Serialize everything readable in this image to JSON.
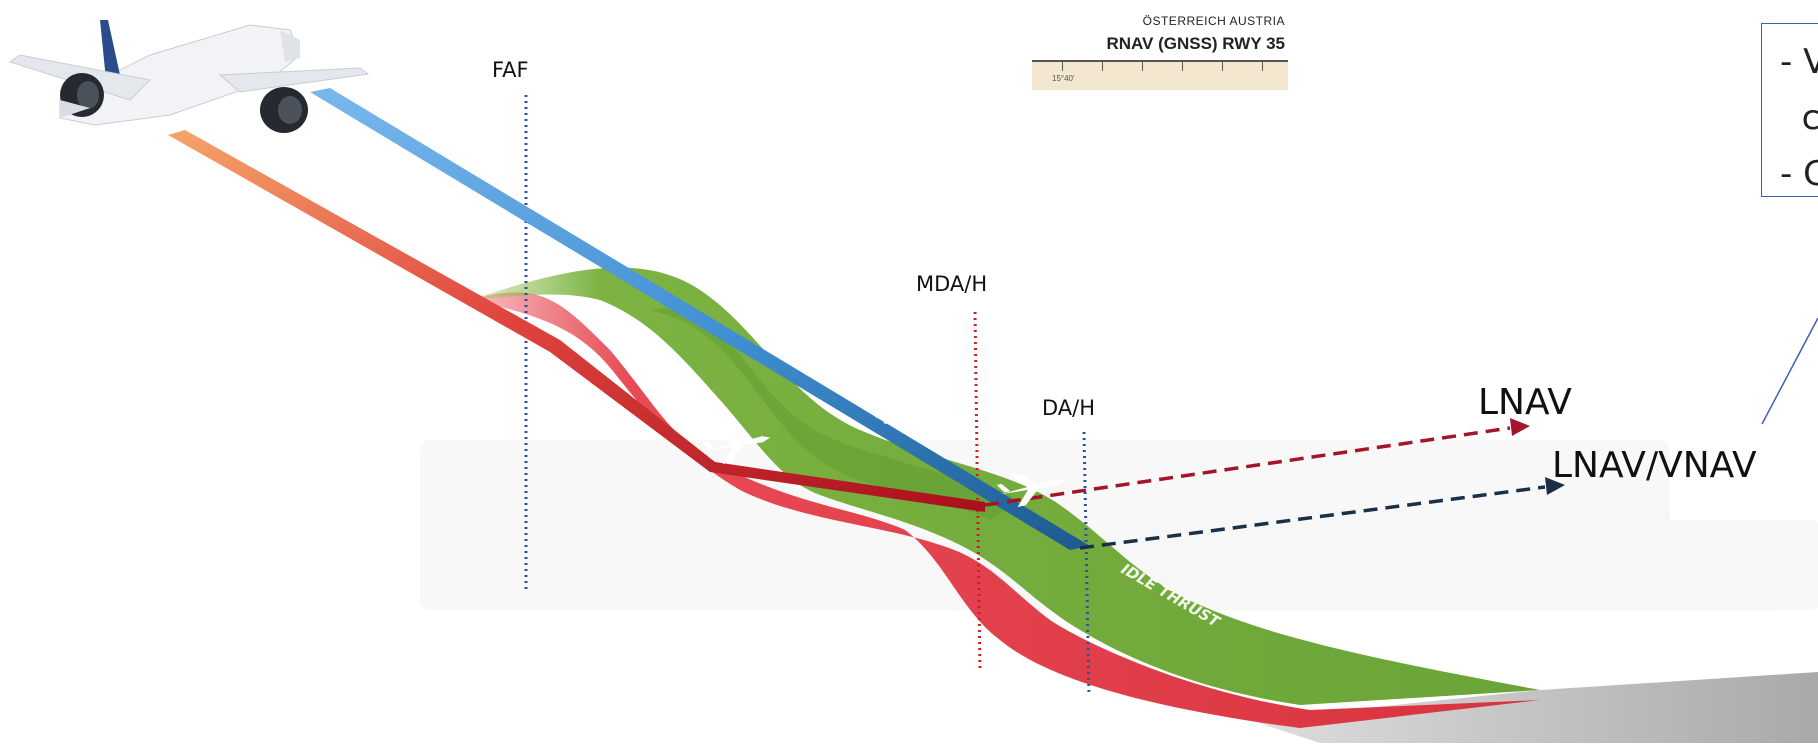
{
  "labels": {
    "faf": "FAF",
    "mda": "MDA/H",
    "da": "DA/H",
    "lnav": "LNAV",
    "lnav_vnav": "LNAV/VNAV",
    "idle_thrust_upper": "IDLE THRUST",
    "idle_thrust_lower": "IDLE THRUST"
  },
  "approach_chart": {
    "country": "ÖSTERREICH AUSTRIA",
    "title": "RNAV (GNSS) RWY 35",
    "scale_label": "15°40'"
  },
  "note_box": {
    "lines": [
      "- V",
      "  c",
      "- C"
    ]
  },
  "colors": {
    "lnav_path": "#a0101e",
    "lnav_vnav_path": "#1c5e98",
    "lnav_arrow": "#a3152a",
    "lnav_vnav_arrow": "#1b2f46",
    "faf_marker": "#2f4fa0",
    "mda_marker": "#cc2222",
    "da_marker": "#2f4fa0",
    "green_terrain": "#7cb342",
    "red_terrain": "#e53945"
  },
  "icons": [
    "airliner-icon",
    "silhouette-plane-icon",
    "silhouette-plane-icon"
  ]
}
